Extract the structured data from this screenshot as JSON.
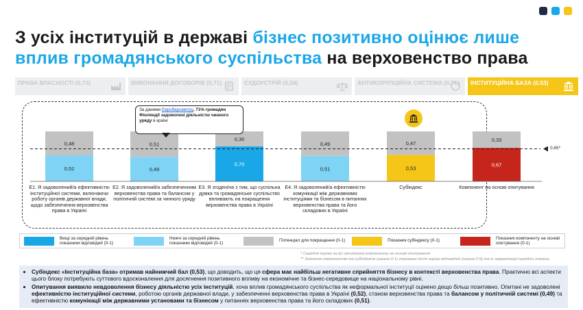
{
  "colors": {
    "accent_blue": "#1aa7e8",
    "light_blue": "#7fd4f5",
    "grey": "#c2c2c2",
    "yellow": "#f5c518",
    "red": "#c6251b",
    "logo": [
      "#1f2a44",
      "#1aa7e8",
      "#f5c518"
    ]
  },
  "title": {
    "part1": "З усіх інституцій в державі ",
    "part2": "бізнес позитивно оцінює лише вплив громадянського суспільства",
    "part3": " на верховенство права"
  },
  "tabs": [
    {
      "label": "ПРАВА ВЛАСНОСТІ (0,73)",
      "icon": "factory-icon",
      "active": false
    },
    {
      "label": "ВИКОНАННЯ ДОГОВОРІВ (0,71)",
      "icon": "contract-icon",
      "active": false
    },
    {
      "label": "СУДОУСТРІЙ (0,54)",
      "icon": "scales-icon",
      "active": false
    },
    {
      "label": "АНТИКОРУПЦІЙНА СИСТЕМА (0,71)",
      "icon": "shield-icon",
      "active": false
    },
    {
      "label": "ІНСТИТУЦІЙНА БАЗА (0,53)",
      "icon": "institution-icon",
      "active": true
    }
  ],
  "callout": {
    "prefix": "За даними ",
    "link": "Євробарометру",
    "bold": ", 71% громадян Фінляндії задоволені діяльністю чинного уряду",
    "suffix": " в країні"
  },
  "chart_data": {
    "type": "bar",
    "stacked": true,
    "categories": [
      "E1. Я задоволений/а ефективністю інституційної системи, включаючи роботу органів державної влади, щодо забезпечення верховенства права в Україні",
      "E2. Я задоволений/а забезпеченням верховенства права та балансом у політичній системі за чинного уряду",
      "E3. Я згоден/на з тим, що суспільна думка та громадянське суспільство впливають на покращення верховенства права в Україні",
      "E4. Я задоволений/а ефективністю комунікації між державними інституціями та бізнесом в питаннях верховенства права та його складових в Україні",
      "Субіндекс",
      "Компонент на основі опитування"
    ],
    "series": [
      {
        "name": "Вищі за середній рівень показники відповідей (0-1)",
        "values": [
          null,
          null,
          0.7,
          null,
          null,
          null
        ],
        "color": "#1aa7e8"
      },
      {
        "name": "Нижчі за середній рівень показники відповідей (0-1)",
        "values": [
          0.52,
          0.49,
          null,
          0.51,
          null,
          null
        ],
        "color": "#7fd4f5"
      },
      {
        "name": "Показник субіндексу (0-1)",
        "values": [
          null,
          null,
          null,
          null,
          0.53,
          null
        ],
        "color": "#f5c518"
      },
      {
        "name": "Показник компоненту на основі опитування (0-1)",
        "values": [
          null,
          null,
          null,
          null,
          null,
          0.67
        ],
        "color": "#c6251b"
      },
      {
        "name": "Потенціал для покращення (0-1)",
        "values": [
          0.48,
          0.51,
          0.3,
          0.49,
          0.47,
          0.33
        ],
        "color": "#c2c2c2"
      }
    ],
    "value_labels": [
      {
        "bottom": "0,52",
        "top": "0,48"
      },
      {
        "bottom": "0,49",
        "top": "0,51"
      },
      {
        "bottom": "0,70",
        "top": "0,30"
      },
      {
        "bottom": "0,51",
        "top": "0,49"
      },
      {
        "bottom": "0,53",
        "top": "0,47"
      },
      {
        "bottom": "0,67",
        "top": "0,33"
      }
    ],
    "reference_line": {
      "value": 0.65,
      "label": "0,65*"
    },
    "ylim": [
      0,
      1
    ],
    "grid": false,
    "legend": "bottom"
  },
  "legend": [
    {
      "label": "Вищі за середній рівень показники відповідей (0-1)",
      "color": "#1aa7e8"
    },
    {
      "label": "Нижчі за середній рівень показники відповідей (0-1)",
      "color": "#7fd4f5"
    },
    {
      "label": "Потенціал для покращення (0-1)",
      "color": "#c2c2c2"
    },
    {
      "label": "Показник субіндексу (0-1)",
      "color": "#f5c518"
    },
    {
      "label": "Показник компоненту на основі опитування (0-1)",
      "color": "#c6251b"
    }
  ],
  "notes": [
    "* Середня оцінка за всі запитання компоненту на основі опитування",
    "** Значення компонентів та субіндексів (шкала 0-1) отримані після оцінки відповідей (шкала 0-5) та їх нормалізації середніх значень"
  ],
  "bullets": [
    {
      "parts": [
        {
          "t": "Субіндекс «Інституційна база» отримав найнижчий бал (0,53)",
          "b": true
        },
        {
          "t": ", що доводить, що ця ",
          "b": false
        },
        {
          "t": "сфера має найбільш негативне сприйняття бізнесу в контексті верховенства права",
          "b": true
        },
        {
          "t": ". Практично всі аспекти цього блоку потребують суттєвого вдосконалення для досягнення позитивного впливу на економічне та бізнес-середовище на національному рівні.",
          "b": false
        }
      ]
    },
    {
      "parts": [
        {
          "t": "Опитування виявило невдоволення бізнесу діяльністю усіх інституцій",
          "b": true
        },
        {
          "t": ", хоча вплив громадянського суспільства як неформальної інституції оцінено дещо більш позитивно. Опитані не задоволені ",
          "b": false
        },
        {
          "t": "ефективністю інституційної системи",
          "b": true
        },
        {
          "t": ", роботою органів державної влади, у забезпеченні верховенства права в Україні ",
          "b": false
        },
        {
          "t": "(0,52)",
          "b": true
        },
        {
          "t": ", станом верховенства права та ",
          "b": false
        },
        {
          "t": "балансом у політичній системі (0,49)",
          "b": true
        },
        {
          "t": " та ефективністю ",
          "b": false
        },
        {
          "t": "комунікації між державними установами та бізнесом",
          "b": true
        },
        {
          "t": " у питаннях верховенства права та його складових ",
          "b": false
        },
        {
          "t": "(0,51)",
          "b": true
        },
        {
          "t": ".",
          "b": false
        }
      ]
    }
  ]
}
